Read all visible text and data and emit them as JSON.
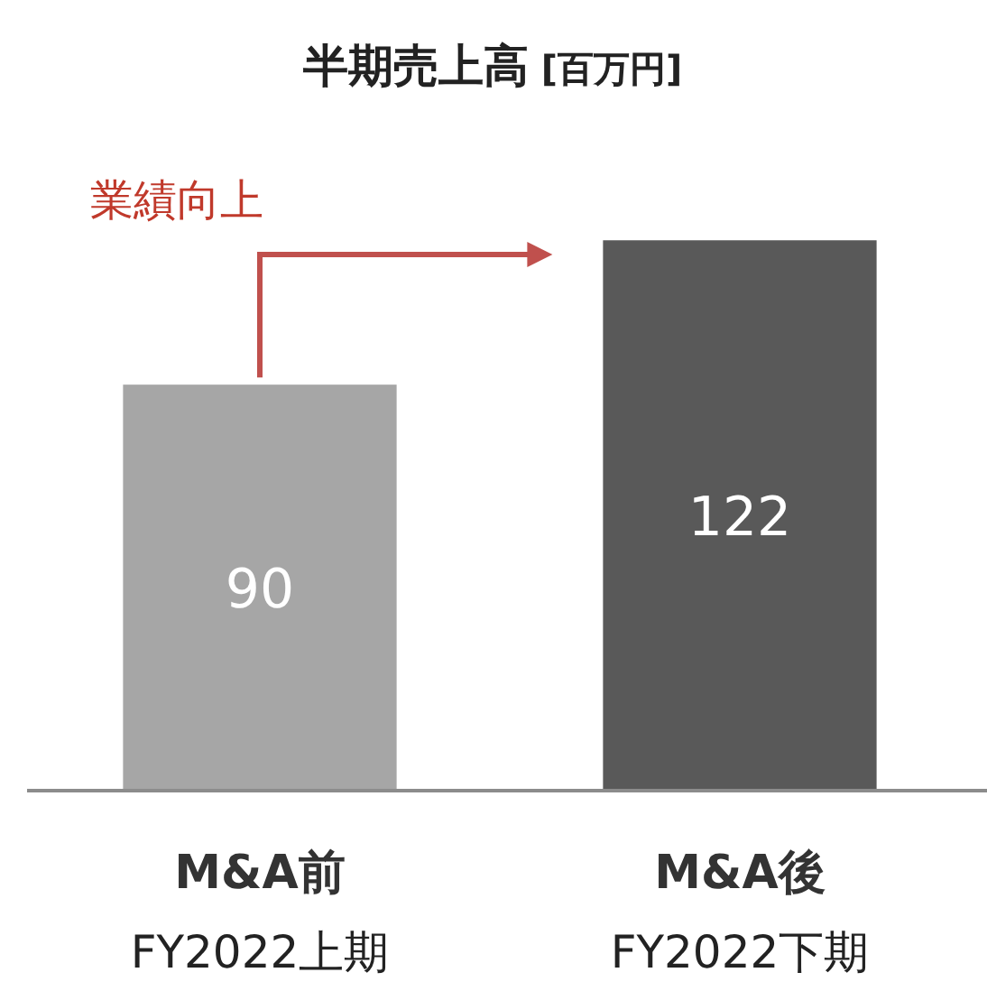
{
  "chart_data": {
    "type": "bar",
    "title": "半期売上高 [百万円]",
    "categories": [
      "M&A前\nFY2022上期",
      "M&A後\nFY2022下期"
    ],
    "values": [
      90,
      122
    ],
    "colors": [
      "#a6a6a6",
      "#595959"
    ],
    "data_labels": true,
    "annotations": [
      "業績向上"
    ]
  }
}
